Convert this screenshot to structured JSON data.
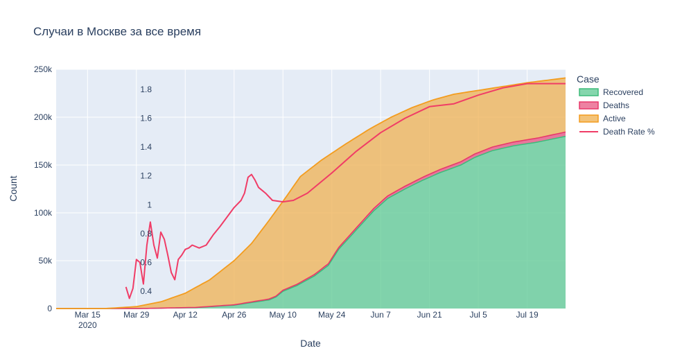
{
  "chart_data": {
    "type": "area",
    "title": "Случаи в Москве за все время",
    "xlabel": "Date",
    "ylabel": "Count",
    "ylim": [
      0,
      250000
    ],
    "xlim": [
      "2020-03-06",
      "2020-07-30"
    ],
    "x_ticks": [
      {
        "label": "Mar 15",
        "sub": "2020",
        "date": "2020-03-15"
      },
      {
        "label": "Mar 29",
        "sub": "",
        "date": "2020-03-29"
      },
      {
        "label": "Apr 12",
        "sub": "",
        "date": "2020-04-12"
      },
      {
        "label": "Apr 26",
        "sub": "",
        "date": "2020-04-26"
      },
      {
        "label": "May 10",
        "sub": "",
        "date": "2020-05-10"
      },
      {
        "label": "May 24",
        "sub": "",
        "date": "2020-05-24"
      },
      {
        "label": "Jun 7",
        "sub": "",
        "date": "2020-06-07"
      },
      {
        "label": "Jun 21",
        "sub": "",
        "date": "2020-06-21"
      },
      {
        "label": "Jul 5",
        "sub": "",
        "date": "2020-07-05"
      },
      {
        "label": "Jul 19",
        "sub": "",
        "date": "2020-07-19"
      }
    ],
    "y_ticks": [
      {
        "label": "0",
        "value": 0
      },
      {
        "label": "50k",
        "value": 50000
      },
      {
        "label": "100k",
        "value": 100000
      },
      {
        "label": "150k",
        "value": 150000
      },
      {
        "label": "200k",
        "value": 200000
      },
      {
        "label": "250k",
        "value": 250000
      }
    ],
    "y2_ticks": [
      {
        "label": "0.4",
        "value": 0.4
      },
      {
        "label": "0.6",
        "value": 0.6
      },
      {
        "label": "0.8",
        "value": 0.8
      },
      {
        "label": "1",
        "value": 1.0
      },
      {
        "label": "1.2",
        "value": 1.2
      },
      {
        "label": "1.4",
        "value": 1.4
      },
      {
        "label": "1.6",
        "value": 1.6
      },
      {
        "label": "1.8",
        "value": 1.8
      }
    ],
    "y2lim": [
      0.28,
      1.91
    ],
    "legend": {
      "title": "Case",
      "placement": "right"
    },
    "series": [
      {
        "name": "Recovered",
        "color": "#66cc99",
        "x": [
          "2020-03-06",
          "2020-03-20",
          "2020-04-01",
          "2020-04-15",
          "2020-04-26",
          "2020-05-06",
          "2020-05-08",
          "2020-05-10",
          "2020-05-14",
          "2020-05-19",
          "2020-05-23",
          "2020-05-26",
          "2020-05-30",
          "2020-06-02",
          "2020-06-05",
          "2020-06-09",
          "2020-06-14",
          "2020-06-19",
          "2020-06-24",
          "2020-06-30",
          "2020-07-04",
          "2020-07-09",
          "2020-07-15",
          "2020-07-22",
          "2020-07-30"
        ],
        "values": [
          0,
          0,
          100,
          1000,
          3500,
          9000,
          12000,
          18000,
          24000,
          34000,
          45000,
          62000,
          78000,
          90000,
          102000,
          115000,
          125000,
          134000,
          142000,
          150000,
          158000,
          165000,
          170000,
          174000,
          180000
        ]
      },
      {
        "name": "Deaths",
        "color": "#e8638b",
        "x": [
          "2020-03-06",
          "2020-03-29",
          "2020-04-12",
          "2020-04-26",
          "2020-05-10",
          "2020-05-24",
          "2020-06-07",
          "2020-06-21",
          "2020-07-05",
          "2020-07-19",
          "2020-07-30"
        ],
        "values": [
          0,
          5,
          100,
          400,
          1100,
          1800,
          2600,
          3200,
          3600,
          4100,
          4500
        ]
      },
      {
        "name": "Active",
        "color": "#f0b458",
        "x": [
          "2020-03-06",
          "2020-03-20",
          "2020-03-29",
          "2020-04-05",
          "2020-04-12",
          "2020-04-19",
          "2020-04-26",
          "2020-05-01",
          "2020-05-06",
          "2020-05-10",
          "2020-05-15",
          "2020-05-21",
          "2020-05-28",
          "2020-06-04",
          "2020-06-10",
          "2020-06-16",
          "2020-06-22",
          "2020-06-28",
          "2020-07-05",
          "2020-07-12",
          "2020-07-19",
          "2020-07-30"
        ],
        "totals": [
          0,
          0,
          2000,
          7000,
          16000,
          30000,
          50000,
          68000,
          92000,
          112000,
          138000,
          155000,
          172000,
          188000,
          200000,
          210000,
          218000,
          224000,
          228000,
          232000,
          236000,
          241000
        ]
      },
      {
        "name": "Death Rate %",
        "color": "#f03c66",
        "axis": "y2",
        "x": [
          "2020-03-26",
          "2020-03-27",
          "2020-03-28",
          "2020-03-29",
          "2020-03-30",
          "2020-03-31",
          "2020-04-01",
          "2020-04-02",
          "2020-04-03",
          "2020-04-04",
          "2020-04-05",
          "2020-04-06",
          "2020-04-07",
          "2020-04-08",
          "2020-04-09",
          "2020-04-10",
          "2020-04-11",
          "2020-04-12",
          "2020-04-13",
          "2020-04-14",
          "2020-04-16",
          "2020-04-18",
          "2020-04-20",
          "2020-04-22",
          "2020-04-26",
          "2020-04-28",
          "2020-04-29",
          "2020-04-30",
          "2020-05-01",
          "2020-05-02",
          "2020-05-03",
          "2020-05-05",
          "2020-05-07",
          "2020-05-10",
          "2020-05-13",
          "2020-05-17",
          "2020-05-24",
          "2020-05-31",
          "2020-06-07",
          "2020-06-14",
          "2020-06-21",
          "2020-06-28",
          "2020-07-05",
          "2020-07-12",
          "2020-07-19",
          "2020-07-26",
          "2020-07-30"
        ],
        "values": [
          0.43,
          0.35,
          0.42,
          0.62,
          0.6,
          0.45,
          0.72,
          0.88,
          0.72,
          0.63,
          0.81,
          0.76,
          0.65,
          0.53,
          0.48,
          0.62,
          0.65,
          0.69,
          0.7,
          0.72,
          0.7,
          0.72,
          0.79,
          0.85,
          0.98,
          1.03,
          1.08,
          1.19,
          1.21,
          1.17,
          1.12,
          1.08,
          1.03,
          1.02,
          1.03,
          1.08,
          1.22,
          1.37,
          1.5,
          1.6,
          1.68,
          1.7,
          1.76,
          1.81,
          1.84,
          1.84,
          1.84
        ]
      }
    ]
  }
}
